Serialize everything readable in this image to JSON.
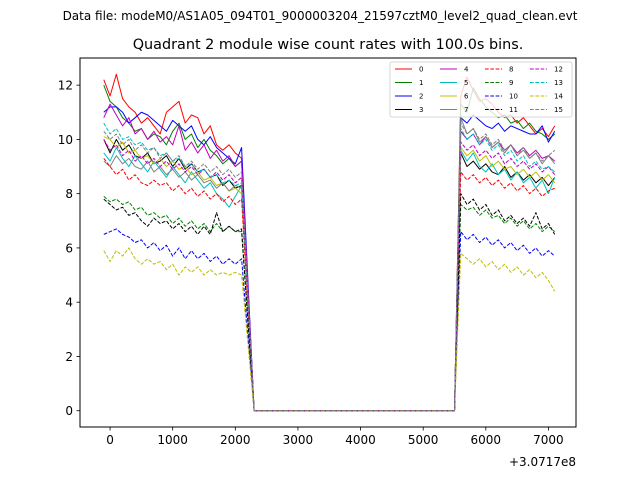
{
  "figure": {
    "suptitle": "Data file: modeM0/AS1A05_094T01_9000003204_21597cztM0_level2_quad_clean.evt"
  },
  "chart_data": {
    "type": "line",
    "title": "Quadrant 2 module wise count rates with 100.0s bins.",
    "xlabel": "",
    "ylabel": "",
    "x_offset_label": "+3.0717e8",
    "xlim": [
      -480,
      7440
    ],
    "ylim": [
      -0.6,
      13.0
    ],
    "xticks": [
      0,
      1000,
      2000,
      3000,
      4000,
      5000,
      6000,
      7000
    ],
    "yticks": [
      0,
      2,
      4,
      6,
      8,
      10,
      12
    ],
    "grid": false,
    "legend_position": "top-right",
    "segments": [
      {
        "x_start": -100,
        "x_end": 2100,
        "step": 100
      },
      {
        "x_start": 2300,
        "x_end": 5500,
        "step": 100
      },
      {
        "x_start": 5600,
        "x_end": 7100,
        "step": 100
      }
    ],
    "series": [
      {
        "name": "0",
        "color": "#ff0000",
        "dashed": false,
        "pre": [
          12.2,
          11.6,
          12.4,
          11.5,
          11.2,
          11.0,
          10.6,
          10.8,
          10.5,
          10.2,
          11.0,
          11.2,
          11.4,
          10.6,
          10.9,
          10.8,
          10.2,
          10.5,
          9.8,
          9.6,
          9.8,
          9.5,
          9.3
        ],
        "post": [
          11.6,
          12.3,
          11.8,
          11.4,
          11.5,
          11.3,
          11.0,
          10.8,
          10.9,
          10.6,
          10.8,
          10.5,
          10.2,
          10.4,
          10.1,
          10.5
        ]
      },
      {
        "name": "1",
        "color": "#008000",
        "dashed": false,
        "pre": [
          12.0,
          11.4,
          11.2,
          10.8,
          10.6,
          10.3,
          10.4,
          10.0,
          10.2,
          10.1,
          9.8,
          10.3,
          10.6,
          10.0,
          10.2,
          9.7,
          10.0,
          9.6,
          9.4,
          9.1,
          9.3,
          9.0,
          9.2
        ],
        "post": [
          11.3,
          11.0,
          11.9,
          11.5,
          11.2,
          11.0,
          10.8,
          10.9,
          10.6,
          10.7,
          10.4,
          10.6,
          10.3,
          10.2,
          10.0,
          10.2
        ]
      },
      {
        "name": "2",
        "color": "#0000ff",
        "dashed": false,
        "pre": [
          11.0,
          11.2,
          11.2,
          11.0,
          10.6,
          10.8,
          11.0,
          10.9,
          10.7,
          10.5,
          10.3,
          10.7,
          10.5,
          10.3,
          10.5,
          10.0,
          9.8,
          10.1,
          9.7,
          9.5,
          9.3,
          9.1,
          9.7
        ],
        "post": [
          10.8,
          10.6,
          10.9,
          10.7,
          10.5,
          10.4,
          10.6,
          10.3,
          10.5,
          10.4,
          10.3,
          10.2,
          10.2,
          10.5,
          9.9,
          10.3
        ]
      },
      {
        "name": "3",
        "color": "#000000",
        "dashed": false,
        "pre": [
          10.0,
          9.5,
          10.0,
          9.6,
          9.8,
          9.4,
          9.3,
          9.5,
          9.1,
          9.2,
          9.4,
          9.0,
          9.3,
          8.9,
          9.1,
          8.8,
          8.9,
          8.6,
          8.7,
          8.3,
          8.5,
          8.2,
          8.3
        ],
        "post": [
          9.5,
          9.0,
          9.2,
          8.9,
          9.1,
          8.8,
          8.7,
          9.0,
          8.6,
          8.8,
          8.5,
          8.7,
          8.4,
          8.6,
          8.3,
          8.6
        ]
      },
      {
        "name": "4",
        "color": "#c000c0",
        "dashed": false,
        "pre": [
          10.8,
          11.3,
          10.9,
          10.5,
          10.8,
          10.2,
          10.4,
          10.0,
          10.3,
          9.9,
          10.1,
          9.8,
          10.5,
          9.6,
          9.9,
          9.5,
          9.8,
          9.3,
          9.6,
          9.2,
          9.4,
          9.0,
          9.2
        ],
        "post": [
          10.3,
          10.0,
          10.2,
          9.8,
          10.1,
          9.7,
          9.9,
          9.6,
          9.8,
          9.5,
          9.7,
          9.4,
          9.6,
          9.3,
          9.4,
          9.2
        ]
      },
      {
        "name": "5",
        "color": "#00bfbf",
        "dashed": false,
        "pre": [
          9.5,
          9.2,
          9.7,
          9.3,
          9.0,
          9.4,
          9.1,
          8.8,
          9.2,
          8.9,
          8.6,
          9.0,
          8.7,
          8.4,
          8.8,
          8.5,
          8.2,
          8.4,
          8.0,
          7.8,
          7.5,
          7.9,
          8.3
        ],
        "post": [
          9.6,
          9.2,
          9.5,
          9.0,
          8.8,
          9.1,
          8.7,
          8.9,
          8.5,
          8.8,
          8.4,
          8.6,
          8.2,
          8.5,
          8.0,
          8.6
        ]
      },
      {
        "name": "6",
        "color": "#bfbf00",
        "dashed": false,
        "pre": [
          10.1,
          10.0,
          9.7,
          9.9,
          9.5,
          9.6,
          9.3,
          9.4,
          9.1,
          9.3,
          9.0,
          9.2,
          8.9,
          9.0,
          8.7,
          8.8,
          8.5,
          8.6,
          8.3,
          8.4,
          8.1,
          8.2,
          8.0
        ],
        "post": [
          9.7,
          9.4,
          9.6,
          9.2,
          9.4,
          9.0,
          9.2,
          8.9,
          9.0,
          8.7,
          8.9,
          8.6,
          8.8,
          8.5,
          8.7,
          8.4
        ]
      },
      {
        "name": "7",
        "color": "#808080",
        "dashed": false,
        "pre": [
          9.2,
          9.0,
          9.4,
          9.1,
          9.3,
          9.0,
          8.9,
          9.2,
          8.8,
          9.0,
          8.7,
          8.9,
          8.6,
          8.8,
          8.5,
          8.7,
          8.4,
          8.5,
          8.2,
          8.4,
          8.1,
          8.3,
          8.2
        ],
        "post": [
          10.8,
          10.2,
          10.4,
          9.9,
          10.1,
          9.7,
          9.9,
          9.5,
          9.8,
          9.4,
          9.6,
          9.3,
          9.5,
          9.1,
          9.4,
          9.1
        ]
      },
      {
        "name": "8",
        "color": "#ff0000",
        "dashed": true,
        "pre": [
          9.3,
          9.0,
          8.7,
          8.9,
          8.5,
          8.7,
          8.4,
          8.3,
          8.5,
          8.3,
          8.4,
          8.1,
          8.3,
          8.0,
          8.2,
          7.9,
          8.1,
          7.8,
          8.0,
          7.7,
          7.9,
          7.6,
          7.8
        ],
        "post": [
          8.8,
          8.5,
          8.7,
          8.4,
          8.6,
          8.3,
          8.5,
          8.2,
          8.4,
          8.1,
          8.3,
          8.0,
          8.2,
          7.9,
          8.1,
          8.2
        ]
      },
      {
        "name": "9",
        "color": "#008000",
        "dashed": true,
        "pre": [
          7.9,
          7.7,
          7.8,
          7.6,
          7.7,
          7.4,
          7.5,
          7.2,
          7.3,
          7.1,
          7.2,
          6.9,
          7.1,
          6.8,
          7.0,
          6.7,
          6.9,
          6.6,
          6.9,
          6.6,
          6.8,
          6.6,
          6.6
        ],
        "post": [
          7.6,
          7.4,
          7.5,
          7.2,
          7.4,
          7.1,
          7.2,
          6.9,
          7.1,
          6.8,
          7.0,
          6.7,
          6.9,
          6.6,
          6.8,
          6.6
        ]
      },
      {
        "name": "10",
        "color": "#0000ff",
        "dashed": true,
        "pre": [
          6.5,
          6.6,
          6.7,
          6.5,
          6.4,
          6.2,
          6.3,
          6.0,
          6.2,
          5.9,
          6.1,
          5.7,
          6.0,
          5.6,
          5.9,
          5.6,
          5.8,
          5.5,
          5.7,
          5.4,
          5.6,
          5.4,
          5.6
        ],
        "post": [
          6.6,
          6.3,
          6.5,
          6.2,
          6.4,
          6.1,
          6.3,
          6.0,
          6.2,
          5.9,
          6.1,
          5.8,
          6.0,
          5.7,
          5.9,
          5.7
        ]
      },
      {
        "name": "11",
        "color": "#000000",
        "dashed": true,
        "pre": [
          7.8,
          7.6,
          7.4,
          7.5,
          7.2,
          7.3,
          7.0,
          6.8,
          7.1,
          6.9,
          7.0,
          6.7,
          6.9,
          6.6,
          6.8,
          6.5,
          6.8,
          6.5,
          7.3,
          6.6,
          6.8,
          6.6,
          6.7
        ],
        "post": [
          8.0,
          7.6,
          7.8,
          7.4,
          7.6,
          7.2,
          7.4,
          7.0,
          7.2,
          6.9,
          7.1,
          6.8,
          7.3,
          6.7,
          6.9,
          6.5
        ]
      },
      {
        "name": "12",
        "color": "#c000c0",
        "dashed": true,
        "pre": [
          10.0,
          9.6,
          9.8,
          9.4,
          9.6,
          9.2,
          9.4,
          9.1,
          9.3,
          9.0,
          9.2,
          8.9,
          9.1,
          8.8,
          9.0,
          8.7,
          8.9,
          8.6,
          8.8,
          8.5,
          8.7,
          8.4,
          8.6
        ],
        "post": [
          9.9,
          9.6,
          9.8,
          9.4,
          9.6,
          9.3,
          9.5,
          9.1,
          9.3,
          9.0,
          9.2,
          8.9,
          9.1,
          8.8,
          9.0,
          8.7
        ]
      },
      {
        "name": "13",
        "color": "#00bfbf",
        "dashed": true,
        "pre": [
          10.6,
          10.2,
          10.4,
          10.0,
          10.1,
          9.8,
          9.9,
          9.6,
          9.7,
          9.4,
          9.5,
          9.2,
          9.3,
          9.0,
          9.1,
          8.8,
          8.9,
          8.6,
          8.7,
          8.4,
          8.5,
          8.3,
          8.4
        ],
        "post": [
          10.4,
          10.0,
          10.2,
          9.8,
          10.0,
          9.6,
          9.8,
          9.4,
          9.6,
          9.2,
          9.4,
          9.0,
          9.2,
          8.9,
          9.0,
          8.8
        ]
      },
      {
        "name": "14",
        "color": "#bfbf00",
        "dashed": true,
        "pre": [
          5.9,
          5.5,
          5.9,
          5.7,
          6.0,
          5.6,
          5.4,
          5.6,
          5.4,
          5.5,
          5.2,
          5.4,
          5.0,
          5.3,
          5.1,
          5.3,
          5.0,
          5.2,
          5.0,
          5.1,
          5.0,
          5.1,
          5.0
        ],
        "post": [
          5.8,
          5.6,
          5.4,
          5.6,
          5.3,
          5.5,
          5.2,
          5.4,
          5.1,
          5.3,
          5.0,
          5.2,
          4.9,
          5.1,
          4.8,
          4.4
        ]
      },
      {
        "name": "15",
        "color": "#808080",
        "dashed": true,
        "pre": [
          10.3,
          10.0,
          10.2,
          9.8,
          10.0,
          9.6,
          9.8,
          9.5,
          9.7,
          9.3,
          9.5,
          9.2,
          9.4,
          9.0,
          9.2,
          8.9,
          9.1,
          8.8,
          9.0,
          8.7,
          8.9,
          8.6,
          8.8
        ],
        "post": [
          10.6,
          10.2,
          10.4,
          10.0,
          10.2,
          9.8,
          10.0,
          9.6,
          9.8,
          9.4,
          9.7,
          9.3,
          9.5,
          9.2,
          9.4,
          9.6
        ]
      }
    ]
  }
}
